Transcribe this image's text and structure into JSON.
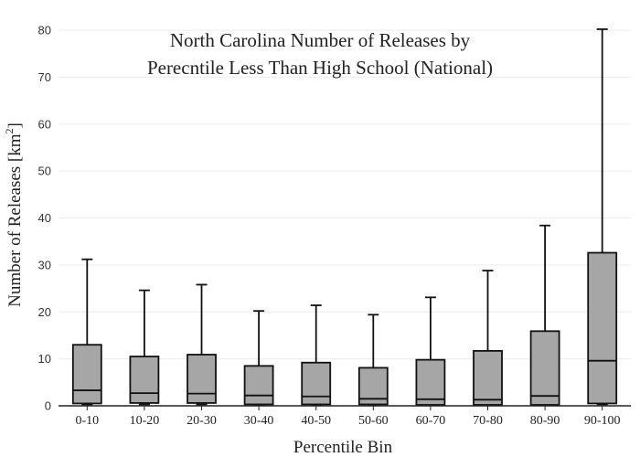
{
  "chart_data": {
    "type": "box",
    "title_lines": [
      "North Carolina Number of Releases by",
      "Perecntile Less Than High School (National)"
    ],
    "xlabel": "Percentile Bin",
    "ylabel_main": "Number of Releases  [km",
    "ylabel_sup": "2",
    "ylabel_end": "]",
    "ylim": [
      0,
      80
    ],
    "yticks": [
      0,
      10,
      20,
      30,
      40,
      50,
      60,
      70,
      80
    ],
    "grid": true,
    "box_color": "#a6a6a6",
    "categories": [
      "0-10",
      "10-20",
      "20-30",
      "30-40",
      "40-50",
      "50-60",
      "60-70",
      "70-80",
      "80-90",
      "90-100"
    ],
    "boxes": [
      {
        "min": 0.3,
        "q1": 0.5,
        "median": 3.3,
        "q3": 13.0,
        "max": 31.2
      },
      {
        "min": 0.3,
        "q1": 0.6,
        "median": 2.7,
        "q3": 10.5,
        "max": 24.6
      },
      {
        "min": 0.3,
        "q1": 0.6,
        "median": 2.6,
        "q3": 10.9,
        "max": 25.8
      },
      {
        "min": 0.1,
        "q1": 0.3,
        "median": 2.2,
        "q3": 8.5,
        "max": 20.2
      },
      {
        "min": 0.1,
        "q1": 0.3,
        "median": 2.0,
        "q3": 9.2,
        "max": 21.4
      },
      {
        "min": 0.1,
        "q1": 0.3,
        "median": 1.5,
        "q3": 8.1,
        "max": 19.4
      },
      {
        "min": 0.1,
        "q1": 0.2,
        "median": 1.4,
        "q3": 9.8,
        "max": 23.1
      },
      {
        "min": 0.1,
        "q1": 0.2,
        "median": 1.3,
        "q3": 11.7,
        "max": 28.8
      },
      {
        "min": 0.1,
        "q1": 0.2,
        "median": 2.1,
        "q3": 15.9,
        "max": 38.4
      },
      {
        "min": 0.3,
        "q1": 0.5,
        "median": 9.6,
        "q3": 32.6,
        "max": 80.2
      }
    ]
  }
}
